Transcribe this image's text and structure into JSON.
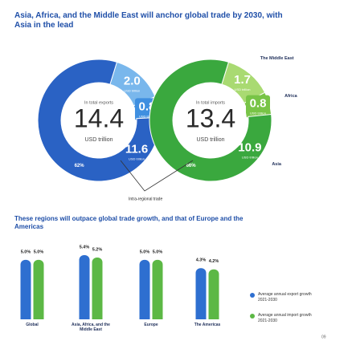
{
  "title": "Asia, Africa, and the Middle East will anchor global trade by 2030, with Asia in the lead",
  "annotation": "Intra-regional trade",
  "page_number": "09",
  "chart_data": [
    {
      "type": "donut",
      "center_label": "In total exports",
      "total": 14.4,
      "total_unit": "USD trillion",
      "values": [
        2.0,
        0.8,
        11.6
      ],
      "value_labels": [
        "2.0",
        "0.8",
        "11.6"
      ],
      "segment_unit": "USD trillion",
      "colors": [
        "#79b7ec",
        "#3f8fe0",
        "#2a62c4"
      ],
      "intra_regional_share": 62,
      "intra_regional_label": "62%"
    },
    {
      "type": "donut",
      "center_label": "In total imports",
      "total": 13.4,
      "total_unit": "USD trillion",
      "categories": [
        "The Middle East",
        "Africa",
        "Asia"
      ],
      "values": [
        1.7,
        0.8,
        10.9
      ],
      "value_labels": [
        "1.7",
        "0.8",
        "10.9"
      ],
      "segment_unit": "USD trillion",
      "colors": [
        "#a9da72",
        "#78c447",
        "#3aa83e"
      ],
      "intra_regional_share": 66,
      "intra_regional_label": "66%"
    },
    {
      "type": "bar",
      "title": "These regions will outpace global trade growth, and that of Europe and the Americas",
      "categories": [
        "Global",
        "Asia, Africa, and the Middle East",
        "Europe",
        "The Americas"
      ],
      "series": [
        {
          "name": "Average annual export growth 2021-2030",
          "color": "#2e6fd0",
          "values": [
            5.0,
            5.4,
            5.0,
            4.3
          ],
          "value_labels": [
            "5.0%",
            "5.4%",
            "5.0%",
            "4.3%"
          ]
        },
        {
          "name": "Average annual import growth 2021-2030",
          "color": "#5cb845",
          "values": [
            5.0,
            5.2,
            5.0,
            4.2
          ],
          "value_labels": [
            "5.0%",
            "5.2%",
            "5.0%",
            "4.2%"
          ]
        }
      ]
    }
  ]
}
